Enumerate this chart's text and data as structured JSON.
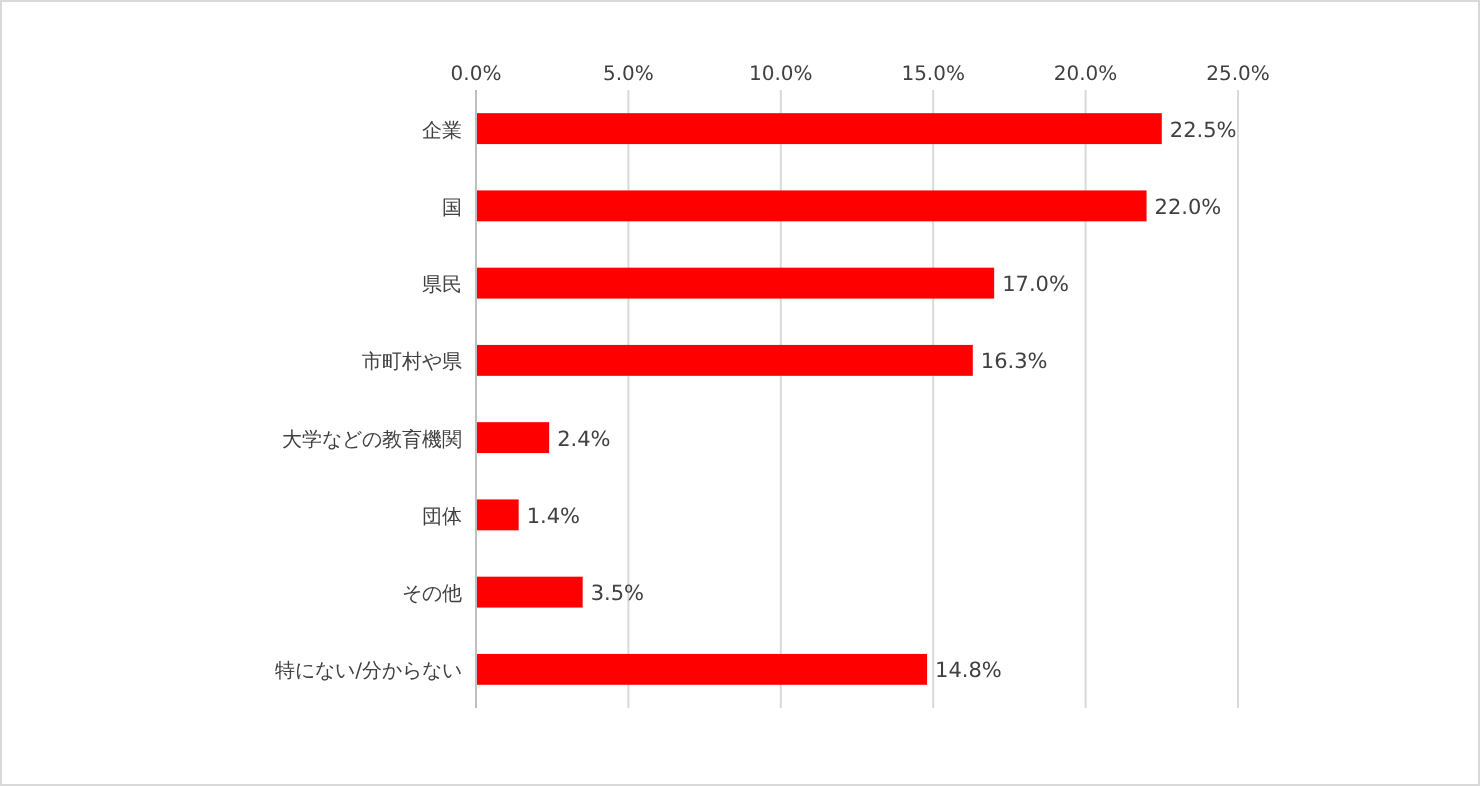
{
  "chart_data": {
    "type": "bar",
    "orientation": "horizontal",
    "categories": [
      "企業",
      "国",
      "県民",
      "市町村や県",
      "大学などの教育機関",
      "団体",
      "その他",
      "特にない/分からない"
    ],
    "values": [
      22.5,
      22.0,
      17.0,
      16.3,
      2.4,
      1.4,
      3.5,
      14.8
    ],
    "value_labels": [
      "22.5%",
      "22.0%",
      "17.0%",
      "16.3%",
      "2.4%",
      "1.4%",
      "3.5%",
      "14.8%"
    ],
    "color": "#ff0000",
    "xlim": [
      0,
      25
    ],
    "xticks": [
      {
        "value": 0,
        "label": "0.0%"
      },
      {
        "value": 5,
        "label": "5.0%"
      },
      {
        "value": 10,
        "label": "10.0%"
      },
      {
        "value": 15,
        "label": "15.0%"
      },
      {
        "value": 20,
        "label": "20.0%"
      },
      {
        "value": 25,
        "label": "25.0%"
      }
    ],
    "grid": "x"
  }
}
